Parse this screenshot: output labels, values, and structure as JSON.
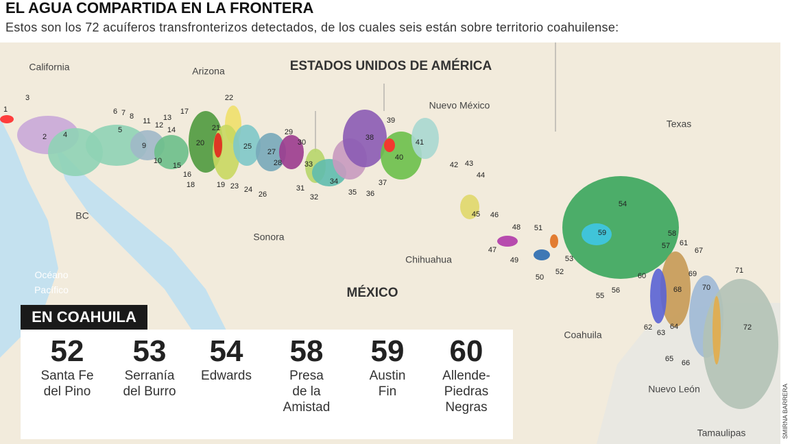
{
  "header": {
    "title": "EL AGUA COMPARTIDA EN LA FRONTERA",
    "subtitle": "Estos son los 72 acuíferos transfronterizos detectados, de los cuales seis están sobre territorio coahuilense:"
  },
  "map": {
    "regions": [
      "California",
      "Arizona",
      "ESTADOS UNIDOS DE AMÉRICA",
      "Nuevo México",
      "Texas",
      "BC",
      "Sonora",
      "Chihuahua",
      "MÉXICO",
      "Coahuila",
      "Nuevo León",
      "Tamaulipas",
      "Océano Pacífico"
    ],
    "aquifer_labels": [
      "1",
      "2",
      "3",
      "4",
      "5",
      "6",
      "7",
      "8",
      "9",
      "10",
      "11",
      "12",
      "13",
      "14",
      "15",
      "16",
      "17",
      "18",
      "19",
      "20",
      "21",
      "22",
      "23",
      "24",
      "25",
      "26",
      "27",
      "28",
      "29",
      "30",
      "31",
      "32",
      "33",
      "34",
      "35",
      "36",
      "37",
      "38",
      "39",
      "40",
      "41",
      "42",
      "43",
      "44",
      "45",
      "46",
      "47",
      "48",
      "49",
      "50",
      "51",
      "52",
      "53",
      "54",
      "55",
      "56",
      "57",
      "58",
      "59",
      "60",
      "61",
      "62",
      "63",
      "64",
      "65",
      "66",
      "67",
      "68",
      "69",
      "70",
      "71",
      "72"
    ]
  },
  "panel": {
    "title": "EN COAHUILA",
    "items": [
      {
        "number": "52",
        "name": [
          "Santa Fe",
          "del Pino"
        ]
      },
      {
        "number": "53",
        "name": [
          "Serranía",
          "del Burro"
        ]
      },
      {
        "number": "54",
        "name": [
          "Edwards"
        ]
      },
      {
        "number": "58",
        "name": [
          "Presa",
          "de la",
          "Amistad"
        ]
      },
      {
        "number": "59",
        "name": [
          "Austin",
          "Fin"
        ]
      },
      {
        "number": "60",
        "name": [
          "Allende-",
          "Piedras",
          "Negras"
        ]
      }
    ]
  },
  "credit": "SMIRNA BARRERA"
}
